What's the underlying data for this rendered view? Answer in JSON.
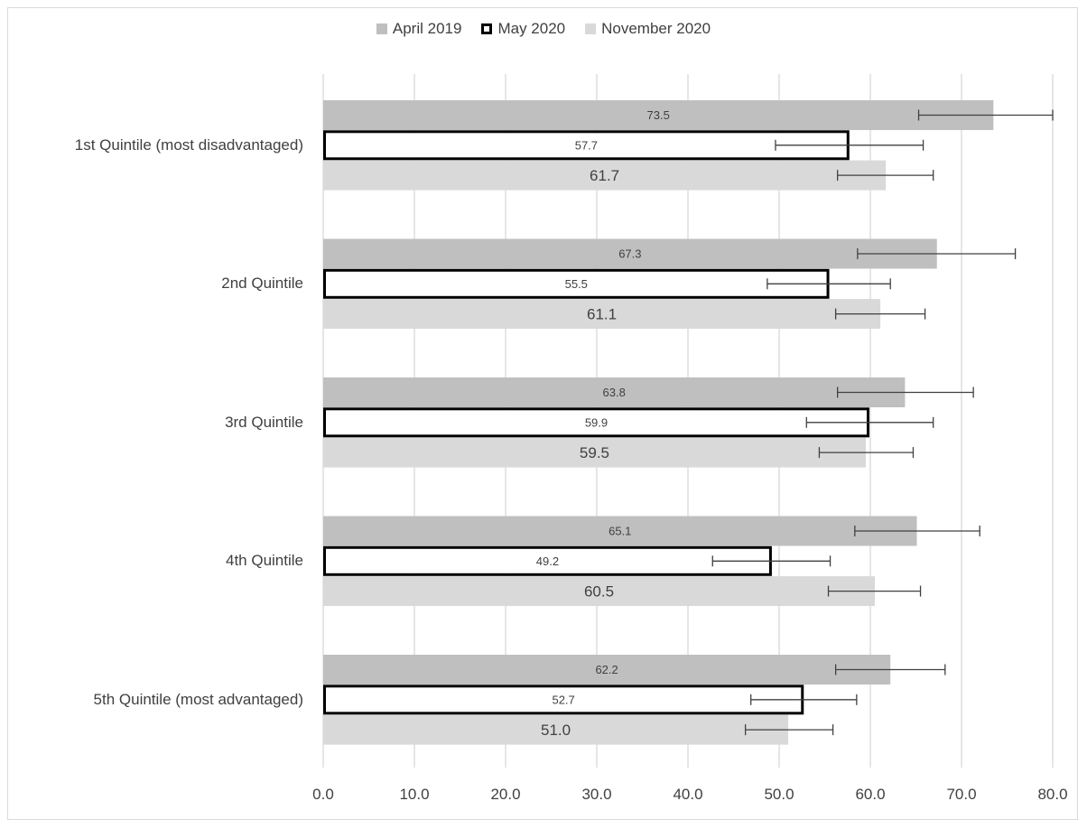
{
  "chart_data": {
    "type": "bar",
    "orientation": "horizontal",
    "categories": [
      "1st Quintile (most disadvantaged)",
      "2nd Quintile",
      "3rd Quintile",
      "4th Quintile",
      "5th Quintile (most advantaged)"
    ],
    "series": [
      {
        "name": "April 2019",
        "color": "#bfbfbf",
        "style": "filled",
        "values": [
          73.5,
          67.3,
          63.8,
          65.1,
          62.2
        ],
        "labels": [
          "73.5",
          "67.3",
          "63.8",
          "65.1",
          "62.2"
        ],
        "error_low": [
          65.3,
          58.6,
          56.4,
          58.3,
          56.2
        ],
        "error_high": [
          80.0,
          75.9,
          71.3,
          72.0,
          68.2
        ]
      },
      {
        "name": "May 2020",
        "color": "#ffffff",
        "border": "#000000",
        "style": "outlined",
        "values": [
          57.7,
          55.5,
          59.9,
          49.2,
          52.7
        ],
        "labels": [
          "57.7",
          "55.5",
          "59.9",
          "49.2",
          "52.7"
        ],
        "error_low": [
          49.6,
          48.7,
          53.0,
          42.7,
          46.9
        ],
        "error_high": [
          65.8,
          62.2,
          66.9,
          55.6,
          58.5
        ]
      },
      {
        "name": "November 2020",
        "color": "#d9d9d9",
        "style": "filled",
        "values": [
          61.7,
          61.1,
          59.5,
          60.5,
          51.0
        ],
        "labels": [
          "61.7",
          "61.1",
          "59.5",
          "60.5",
          "51.0"
        ],
        "error_low": [
          56.4,
          56.2,
          54.4,
          55.4,
          46.3
        ],
        "error_high": [
          66.9,
          66.0,
          64.7,
          65.5,
          55.9
        ]
      }
    ],
    "xlim": [
      0,
      80
    ],
    "xticks": [
      "0.0",
      "10.0",
      "20.0",
      "30.0",
      "40.0",
      "50.0",
      "60.0",
      "70.0",
      "80.0"
    ],
    "grid": "vertical",
    "legend": "top-center",
    "title": "",
    "xlabel": "",
    "ylabel": ""
  }
}
